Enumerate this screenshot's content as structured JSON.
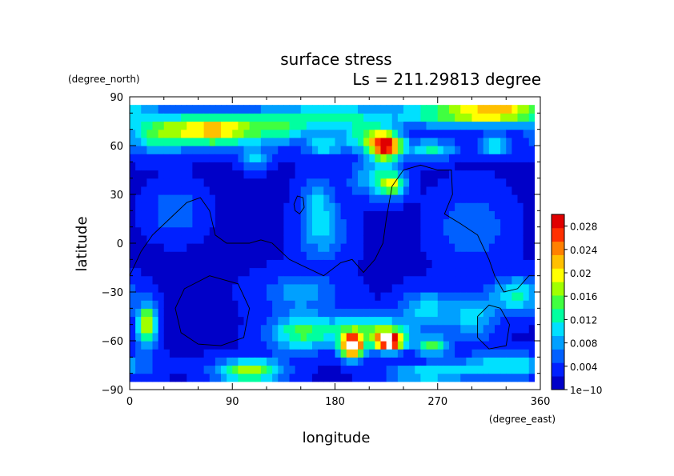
{
  "chart_data": {
    "type": "heatmap",
    "title": "surface stress",
    "subtitle": "Ls = 211.29813 degree",
    "xlabel": "longitude",
    "ylabel": "latitude",
    "x_units": "(degree_east)",
    "y_units": "(degree_north)",
    "xlim": [
      0,
      360
    ],
    "ylim": [
      -90,
      90
    ],
    "x_ticks": [
      "0",
      "90",
      "180",
      "270",
      "360"
    ],
    "y_ticks": [
      "90",
      "60",
      "30",
      "0",
      "−30",
      "−60",
      "−90"
    ],
    "x_tick_values": [
      0,
      90,
      180,
      270,
      360
    ],
    "y_tick_values": [
      90,
      60,
      30,
      0,
      -30,
      -60,
      -90
    ],
    "colorbar": {
      "min": 1e-10,
      "max": 0.03,
      "labels": [
        "1e−10",
        "0.004",
        "0.008",
        "0.012",
        "0.016",
        "0.02",
        "0.024",
        "0.028"
      ],
      "label_values": [
        0,
        0.004,
        0.008,
        0.012,
        0.016,
        0.02,
        0.024,
        0.028
      ],
      "colors": [
        "#0000c8",
        "#0020ff",
        "#0060ff",
        "#00a0ff",
        "#00e0ff",
        "#00ffa0",
        "#40ff40",
        "#a0ff00",
        "#ffff00",
        "#ffc000",
        "#ff8000",
        "#ff3000",
        "#e00000"
      ]
    },
    "background_value": 0.002,
    "features": [
      {
        "lon": 75,
        "lat": 70,
        "amp": 0.02,
        "sx": 25,
        "sy": 7
      },
      {
        "lon": 25,
        "lat": 68,
        "amp": 0.012,
        "sx": 20,
        "sy": 8
      },
      {
        "lon": 130,
        "lat": 72,
        "amp": 0.01,
        "sx": 20,
        "sy": 8
      },
      {
        "lon": 180,
        "lat": 78,
        "amp": 0.01,
        "sx": 30,
        "sy": 6
      },
      {
        "lon": 225,
        "lat": 60,
        "amp": 0.026,
        "sx": 10,
        "sy": 6
      },
      {
        "lon": 205,
        "lat": 65,
        "amp": 0.01,
        "sx": 14,
        "sy": 6
      },
      {
        "lon": 290,
        "lat": 80,
        "amp": 0.014,
        "sx": 40,
        "sy": 6
      },
      {
        "lon": 330,
        "lat": 82,
        "amp": 0.012,
        "sx": 25,
        "sy": 5
      },
      {
        "lon": 320,
        "lat": 60,
        "amp": 0.01,
        "sx": 10,
        "sy": 4
      },
      {
        "lon": 170,
        "lat": 60,
        "amp": 0.01,
        "sx": 10,
        "sy": 4
      },
      {
        "lon": 110,
        "lat": 52,
        "amp": 0.009,
        "sx": 8,
        "sy": 4
      },
      {
        "lon": 265,
        "lat": 58,
        "amp": 0.01,
        "sx": 15,
        "sy": 4
      },
      {
        "lon": 230,
        "lat": 36,
        "amp": 0.014,
        "sx": 8,
        "sy": 5
      },
      {
        "lon": 215,
        "lat": 40,
        "amp": 0.008,
        "sx": 15,
        "sy": 8
      },
      {
        "lon": 165,
        "lat": 25,
        "amp": 0.007,
        "sx": 10,
        "sy": 12
      },
      {
        "lon": 170,
        "lat": 5,
        "amp": 0.006,
        "sx": 15,
        "sy": 12
      },
      {
        "lon": 195,
        "lat": -63,
        "amp": 0.032,
        "sx": 7,
        "sy": 5
      },
      {
        "lon": 227,
        "lat": -60,
        "amp": 0.032,
        "sx": 9,
        "sy": 4
      },
      {
        "lon": 210,
        "lat": -52,
        "amp": 0.012,
        "sx": 25,
        "sy": 6
      },
      {
        "lon": 150,
        "lat": -55,
        "amp": 0.012,
        "sx": 20,
        "sy": 8
      },
      {
        "lon": 265,
        "lat": -63,
        "amp": 0.012,
        "sx": 10,
        "sy": 4
      },
      {
        "lon": 105,
        "lat": -78,
        "amp": 0.016,
        "sx": 20,
        "sy": 5
      },
      {
        "lon": 15,
        "lat": -50,
        "amp": 0.018,
        "sx": 6,
        "sy": 9
      },
      {
        "lon": 340,
        "lat": -32,
        "amp": 0.01,
        "sx": 15,
        "sy": 8
      },
      {
        "lon": 300,
        "lat": -45,
        "amp": 0.008,
        "sx": 15,
        "sy": 10
      },
      {
        "lon": 150,
        "lat": -30,
        "amp": 0.006,
        "sx": 25,
        "sy": 8
      },
      {
        "lon": 260,
        "lat": -40,
        "amp": 0.008,
        "sx": 15,
        "sy": 8
      },
      {
        "lon": 330,
        "lat": -75,
        "amp": 0.01,
        "sx": 30,
        "sy": 5
      },
      {
        "lon": 260,
        "lat": -80,
        "amp": 0.009,
        "sx": 25,
        "sy": 4
      },
      {
        "lon": 40,
        "lat": 20,
        "amp": 0.005,
        "sx": 15,
        "sy": 10
      },
      {
        "lon": 300,
        "lat": 10,
        "amp": 0.005,
        "sx": 20,
        "sy": 15
      }
    ],
    "contours": [
      [
        [
          0,
          -20
        ],
        [
          10,
          -5
        ],
        [
          20,
          5
        ],
        [
          35,
          15
        ],
        [
          50,
          25
        ],
        [
          62,
          28
        ],
        [
          70,
          20
        ],
        [
          75,
          5
        ],
        [
          85,
          0
        ],
        [
          95,
          0
        ],
        [
          105,
          0
        ],
        [
          115,
          2
        ],
        [
          125,
          0
        ],
        [
          140,
          -10
        ],
        [
          155,
          -15
        ],
        [
          170,
          -20
        ],
        [
          185,
          -12
        ],
        [
          195,
          -10
        ],
        [
          205,
          -18
        ],
        [
          215,
          -10
        ],
        [
          222,
          0
        ],
        [
          225,
          15
        ],
        [
          230,
          35
        ],
        [
          240,
          45
        ],
        [
          255,
          48
        ],
        [
          270,
          45
        ],
        [
          282,
          45
        ],
        [
          283,
          30
        ],
        [
          276,
          18
        ],
        [
          290,
          12
        ],
        [
          305,
          5
        ],
        [
          315,
          -10
        ],
        [
          320,
          -20
        ],
        [
          328,
          -30
        ],
        [
          340,
          -28
        ],
        [
          350,
          -20
        ],
        [
          360,
          -20
        ]
      ],
      [
        [
          145,
          20
        ],
        [
          149,
          18
        ],
        [
          153,
          22
        ],
        [
          152,
          28
        ],
        [
          147,
          29
        ],
        [
          144,
          24
        ],
        [
          145,
          20
        ]
      ],
      [
        [
          70,
          -20
        ],
        [
          95,
          -25
        ],
        [
          105,
          -40
        ],
        [
          100,
          -58
        ],
        [
          80,
          -63
        ],
        [
          60,
          -62
        ],
        [
          45,
          -55
        ],
        [
          40,
          -40
        ],
        [
          48,
          -28
        ],
        [
          70,
          -20
        ]
      ],
      [
        [
          325,
          -40
        ],
        [
          333,
          -50
        ],
        [
          330,
          -63
        ],
        [
          315,
          -65
        ],
        [
          305,
          -58
        ],
        [
          305,
          -45
        ],
        [
          315,
          -38
        ],
        [
          325,
          -40
        ]
      ]
    ]
  }
}
